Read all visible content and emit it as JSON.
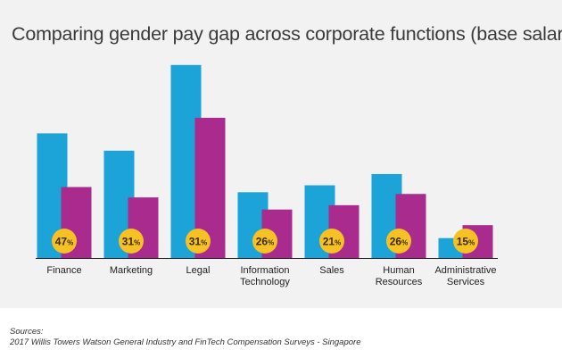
{
  "title": "Comparing gender pay gap across corporate functions (base salary)",
  "sources_label": "Sources:",
  "sources_text": "2017 Willis Towers Watson General Industry and FinTech Compensation Surveys - Singapore",
  "colors": {
    "series_a": "#1ca3d8",
    "series_b": "#aa2b8e",
    "badge": "#f5c124",
    "badge_text": "#3a2c00",
    "panel": "#f2f2f2",
    "axis": "#222222"
  },
  "chart_data": {
    "type": "bar",
    "title": "Comparing gender pay gap across corporate functions (base salary)",
    "xlabel": "",
    "ylabel": "",
    "y_axis_visible": false,
    "grid": false,
    "categories": [
      [
        "Finance"
      ],
      [
        "Marketing"
      ],
      [
        "Legal"
      ],
      [
        "Information",
        "Technology"
      ],
      [
        "Sales"
      ],
      [
        "Human",
        "Resources"
      ],
      [
        "Administrative",
        "Services"
      ]
    ],
    "series": [
      {
        "values": [
          144,
          124,
          223,
          76,
          84,
          97,
          23
        ]
      },
      {
        "values": [
          82,
          70,
          162,
          56,
          61,
          74,
          38
        ]
      }
    ],
    "ylim": [
      0,
      230
    ],
    "annotations": [
      {
        "category_index": 0,
        "text": "47",
        "unit": "%"
      },
      {
        "category_index": 1,
        "text": "31",
        "unit": "%"
      },
      {
        "category_index": 2,
        "text": "31",
        "unit": "%"
      },
      {
        "category_index": 3,
        "text": "26",
        "unit": "%"
      },
      {
        "category_index": 4,
        "text": "21",
        "unit": "%"
      },
      {
        "category_index": 5,
        "text": "26",
        "unit": "%"
      },
      {
        "category_index": 6,
        "text": "15",
        "unit": "%"
      }
    ]
  }
}
